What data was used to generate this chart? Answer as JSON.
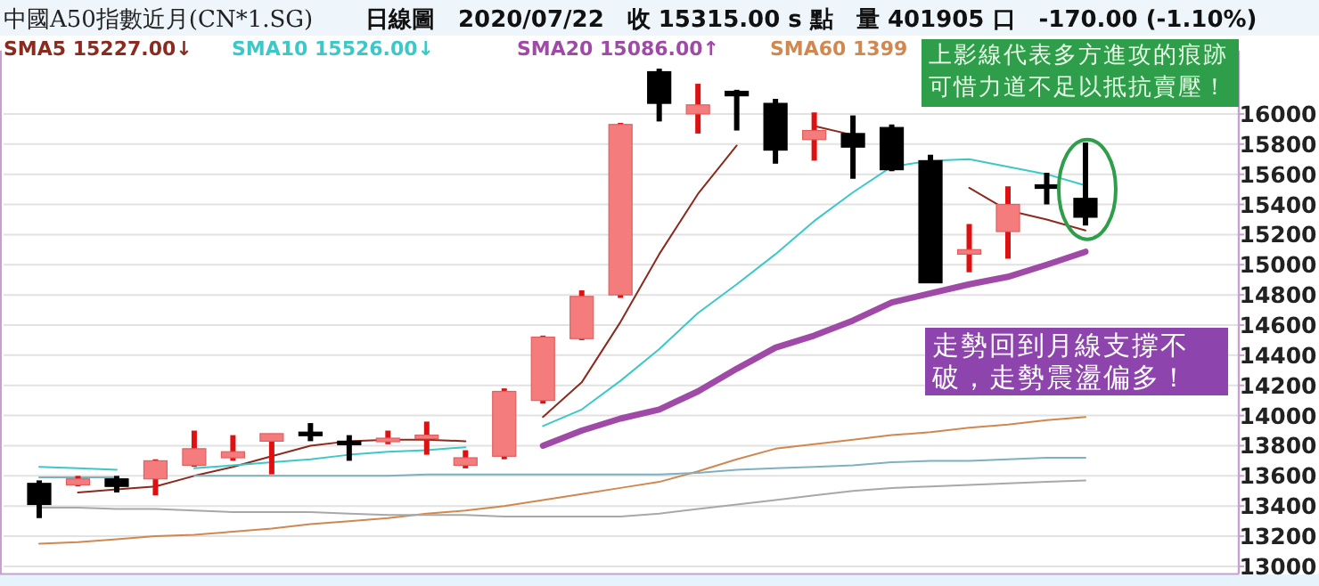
{
  "chart_data": {
    "type": "candlestick",
    "title": "中國A50指數近月(CN*1.SG)",
    "subtitle": "日線圖　2020/07/22　收 15315.00 s 點　量 401905 口　-170.00 (-1.10%)",
    "categories": [
      null,
      null,
      null,
      null,
      null,
      null,
      null,
      null,
      null,
      null,
      null,
      null,
      null,
      null,
      null,
      null,
      null,
      null,
      null,
      null,
      null,
      null,
      null,
      null,
      null,
      null,
      null,
      null
    ],
    "ohlc": [
      [
        13550,
        13570,
        13320,
        13410
      ],
      [
        13540,
        13600,
        13530,
        13580
      ],
      [
        13580,
        13600,
        13490,
        13530
      ],
      [
        13580,
        13710,
        13470,
        13700
      ],
      [
        13670,
        13900,
        13660,
        13780
      ],
      [
        13720,
        13870,
        13700,
        13760
      ],
      [
        13830,
        13880,
        13610,
        13880
      ],
      [
        13890,
        13950,
        13830,
        13870
      ],
      [
        13830,
        13870,
        13700,
        13820
      ],
      [
        13830,
        13900,
        13810,
        13850
      ],
      [
        13860,
        13960,
        13740,
        13870
      ],
      [
        13670,
        13770,
        13650,
        13720
      ],
      [
        13730,
        14180,
        13710,
        14160
      ],
      [
        14100,
        14530,
        14080,
        14520
      ],
      [
        14510,
        14830,
        14500,
        14790
      ],
      [
        14800,
        15940,
        14780,
        15930
      ],
      [
        16280,
        16300,
        15950,
        16070
      ],
      [
        16000,
        16200,
        15870,
        16060
      ],
      [
        16150,
        16160,
        15890,
        16120
      ],
      [
        16070,
        16100,
        15670,
        15760
      ],
      [
        15830,
        16010,
        15690,
        15890
      ],
      [
        15870,
        15990,
        15570,
        15780
      ],
      [
        15910,
        15930,
        15620,
        15630
      ],
      [
        15690,
        15730,
        14880,
        14880
      ],
      [
        15070,
        15270,
        14950,
        15100
      ],
      [
        15220,
        15520,
        15040,
        15400
      ],
      [
        15530,
        15610,
        15400,
        15520
      ],
      [
        15440,
        15810,
        15260,
        15315
      ]
    ],
    "series": [
      {
        "name": "SMA5 15227.00↓",
        "type": "line",
        "color": "#8b2a1e",
        "values": [
          null,
          13490,
          13510,
          13530,
          13600,
          13660,
          13730,
          13800,
          13830,
          13840,
          13840,
          13830,
          null,
          13990,
          14220,
          14620,
          15070,
          15470,
          15790,
          null,
          15920,
          15860,
          null,
          null,
          15510,
          15360,
          15300,
          15227
        ]
      },
      {
        "name": "SMA10 15526.00↓",
        "type": "line",
        "color": "#3cc8c8",
        "values": [
          13660,
          13650,
          13640,
          null,
          13650,
          13670,
          13690,
          13710,
          13740,
          13760,
          13770,
          13790,
          null,
          13930,
          14040,
          14230,
          14440,
          14680,
          14870,
          15070,
          15290,
          15480,
          15650,
          15690,
          15700,
          15650,
          15600,
          15526
        ]
      },
      {
        "name": "SMA20 15086.00↑",
        "type": "line",
        "color": "#a04aa8",
        "values": [
          null,
          null,
          null,
          null,
          null,
          null,
          null,
          null,
          null,
          null,
          null,
          null,
          null,
          13800,
          13900,
          13980,
          14040,
          14160,
          14310,
          14450,
          14530,
          14630,
          14750,
          14810,
          14870,
          14920,
          15000,
          15086
        ]
      },
      {
        "name": "SMA60 1399",
        "type": "line",
        "color": "#d08850",
        "values": [
          13150,
          13160,
          13180,
          13200,
          13210,
          13230,
          13250,
          13280,
          13300,
          13320,
          13350,
          13370,
          13400,
          13440,
          13480,
          13520,
          13560,
          13630,
          13710,
          13780,
          13810,
          13840,
          13870,
          13890,
          13920,
          13940,
          13970,
          13990
        ]
      },
      {
        "type": "line",
        "color": "#7fb0c0",
        "values": [
          13590,
          13590,
          13590,
          null,
          13600,
          13600,
          13600,
          13600,
          13600,
          13600,
          13610,
          13610,
          13610,
          13610,
          13610,
          13610,
          13610,
          13620,
          13640,
          13650,
          13660,
          13670,
          13690,
          13700,
          13700,
          13710,
          13720,
          13720
        ]
      },
      {
        "type": "line",
        "color": "#a8a8a8",
        "values": [
          13390,
          13390,
          13380,
          13380,
          13370,
          13360,
          13360,
          13360,
          13350,
          13340,
          13340,
          13340,
          13330,
          13330,
          13330,
          13330,
          13350,
          13380,
          13410,
          13440,
          13470,
          13500,
          13520,
          13530,
          13540,
          13550,
          13560,
          13570
        ]
      }
    ],
    "ylim": [
      12950,
      16420
    ],
    "yticks": [
      13000,
      13200,
      13400,
      13600,
      13800,
      14000,
      14200,
      14400,
      14600,
      14800,
      15000,
      15200,
      15400,
      15600,
      15800,
      16000
    ],
    "grid": "y",
    "legend": "top left",
    "annotations": [
      "上影線代表多方進攻的痕跡可惜力道不足以抵抗賣壓！",
      "走勢回到月線支撐不破，走勢震盪偏多！"
    ]
  }
}
